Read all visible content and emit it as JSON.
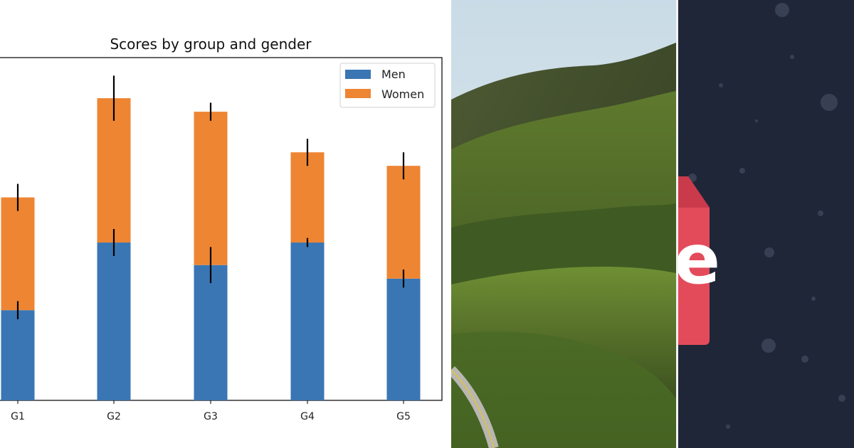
{
  "chart_data": {
    "type": "bar",
    "stacked": true,
    "title": "Scores by group and gender",
    "categories": [
      "G1",
      "G2",
      "G3",
      "G4",
      "G5"
    ],
    "series": [
      {
        "name": "Men",
        "color": "#3a76b3",
        "values": [
          20,
          35,
          30,
          35,
          27
        ],
        "errors": [
          2,
          3,
          4,
          1,
          2
        ]
      },
      {
        "name": "Women",
        "color": "#ee8533",
        "values": [
          25,
          32,
          34,
          20,
          25
        ],
        "errors": [
          3,
          5,
          2,
          3,
          3
        ]
      }
    ],
    "xlabel": "",
    "ylabel": "",
    "ylim": [
      0,
      76
    ],
    "legend": "top-right",
    "grid": false
  },
  "images": {
    "landscape": "aerial photo of green hills with a winding road",
    "dark_panel": "dark navy speckled background with red tag graphic",
    "tag_letter": "e"
  },
  "colors": {
    "dark_panel_bg": "#1f2638",
    "tag_red": "#e44b5a"
  }
}
